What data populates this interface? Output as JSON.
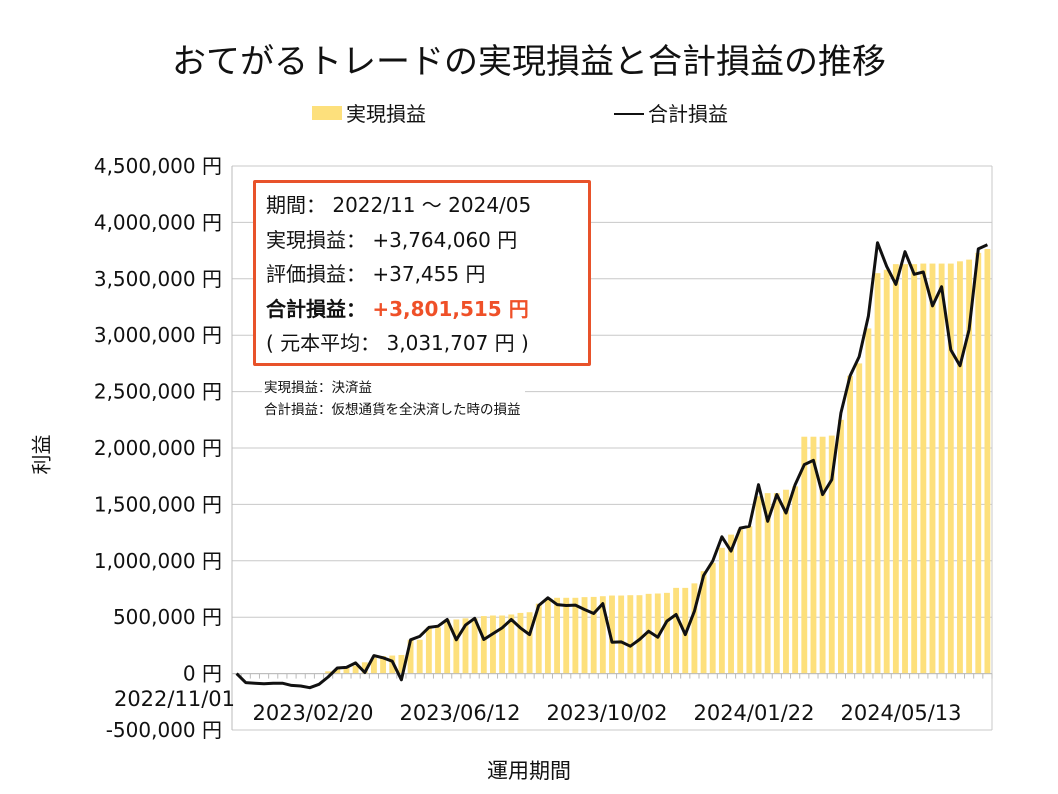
{
  "title": "おてがるトレードの実現損益と合計損益の推移",
  "legend": {
    "bar_label": "実現損益",
    "line_label": "合計損益"
  },
  "colors": {
    "bar": "#fde07c",
    "line": "#111111",
    "box_border": "#e8522a",
    "highlight": "#ef5028",
    "grid": "#c8c8c8"
  },
  "infobox": {
    "period_label": "期間：",
    "period_value": "2022/11 ～ 2024/05",
    "realized_label": "実現損益：",
    "realized_value": "+3,764,060 円",
    "unrealized_label": "評価損益：",
    "unrealized_value": "+37,455 円",
    "total_label": "合計損益：",
    "total_value": "+3,801,515 円",
    "principal_text": "( 元本平均： 3,031,707 円 )"
  },
  "notes": [
    "実現損益：決済益",
    "合計損益：仮想通貨を全決済した時の損益"
  ],
  "chart_data": {
    "type": "bar+line",
    "title": "おてがるトレードの実現損益と合計損益の推移",
    "xlabel": "運用期間",
    "ylabel": "利益",
    "ylim": [
      -500000,
      4500000
    ],
    "y_ticks": [
      "4,500,000 円",
      "4,000,000 円",
      "3,500,000 円",
      "3,000,000 円",
      "2,500,000 円",
      "2,000,000 円",
      "1,500,000 円",
      "1,000,000 円",
      "500,000 円",
      "0 円",
      "-500,000 円"
    ],
    "y_tick_values": [
      4500000,
      4000000,
      3500000,
      3000000,
      2500000,
      2000000,
      1500000,
      1000000,
      500000,
      0,
      -500000
    ],
    "x_ticks": [
      "2022/11/01",
      "2023/02/20",
      "2023/06/12",
      "2023/10/02",
      "2024/01/22",
      "2024/05/13"
    ],
    "x_tick_index": [
      0,
      16,
      32,
      48,
      64,
      80
    ],
    "grid": true,
    "legend_position": "top",
    "series": [
      {
        "name": "実現損益",
        "type": "bar",
        "values": [
          0,
          0,
          0,
          0,
          0,
          0,
          0,
          0,
          0,
          0,
          20000,
          40000,
          55000,
          70000,
          100000,
          140000,
          155000,
          160000,
          165000,
          300000,
          300000,
          410000,
          410000,
          480000,
          480000,
          490000,
          490000,
          510000,
          515000,
          515000,
          524000,
          538000,
          544000,
          620000,
          670000,
          672000,
          672000,
          672000,
          678000,
          680000,
          686000,
          692000,
          692000,
          695000,
          695000,
          707000,
          710000,
          716000,
          760000,
          760000,
          800000,
          908000,
          982000,
          1115000,
          1232000,
          1277000,
          1306000,
          1572000,
          1600000,
          1600000,
          1630000,
          1660000,
          2100000,
          2100000,
          2100000,
          2110000,
          2250000,
          2640000,
          2750000,
          3060000,
          3550000,
          3580000,
          3630000,
          3630000,
          3630000,
          3635000,
          3635000,
          3635000,
          3635000,
          3655000,
          3670000,
          3730000,
          3764060
        ]
      },
      {
        "name": "合計損益",
        "type": "line",
        "values": [
          0,
          -80000,
          -85000,
          -90000,
          -85000,
          -85000,
          -105000,
          -110000,
          -125000,
          -95000,
          -30000,
          50000,
          55000,
          95000,
          10000,
          160000,
          140000,
          110000,
          -55000,
          300000,
          330000,
          410000,
          420000,
          480000,
          300000,
          430000,
          490000,
          302000,
          355000,
          405000,
          480000,
          405000,
          346000,
          604000,
          672000,
          612000,
          604000,
          607000,
          568000,
          533000,
          621000,
          278000,
          281000,
          243000,
          302000,
          376000,
          323000,
          465000,
          524000,
          346000,
          553000,
          870000,
          997000,
          1213000,
          1086000,
          1290000,
          1306000,
          1675000,
          1350000,
          1587000,
          1424000,
          1675000,
          1853000,
          1891000,
          1587000,
          1720000,
          2310000,
          2640000,
          2810000,
          3170000,
          3820000,
          3610000,
          3450000,
          3740000,
          3540000,
          3560000,
          3260000,
          3430000,
          2870000,
          2730000,
          3050000,
          3765000,
          3801515
        ]
      }
    ]
  }
}
